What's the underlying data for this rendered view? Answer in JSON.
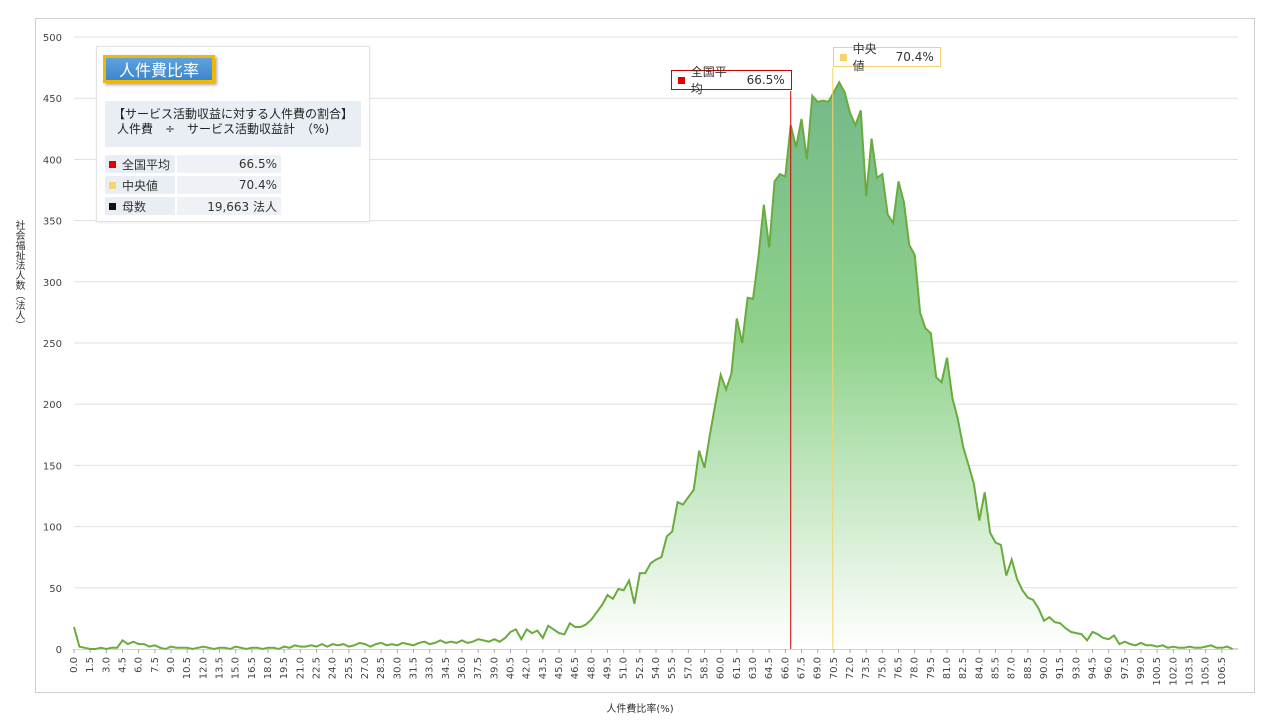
{
  "colors": {
    "line": "#6aab3e",
    "fill_top": "#74b88a",
    "fill_bottom": "#ffffff",
    "mean": "#cc0000",
    "median": "#f5d36b",
    "grid": "#e0e0e0"
  },
  "axis": {
    "ylabel": "社会福祉法人数（法人）",
    "xlabel": "人件費比率(%)"
  },
  "legend": {
    "title": "人件費比率",
    "desc_line1": "【サービス活動収益に対する人件費の割合】",
    "desc_line2": "人件費　÷　サービス活動収益計　（%)",
    "rows": [
      {
        "label": "全国平均",
        "value": "66.5%",
        "color": "#e00000"
      },
      {
        "label": "中央値",
        "value": "70.4%",
        "color": "#f7d56a"
      },
      {
        "label": "母数",
        "value": "19,663  法人",
        "color": "#111111"
      }
    ]
  },
  "markers": {
    "mean": {
      "label": "全国平均",
      "value": "66.5%",
      "x": 66.5
    },
    "median": {
      "label": "中央値",
      "value": "70.4%",
      "x": 70.4
    }
  },
  "chart_data": {
    "type": "area",
    "title": "",
    "xlabel": "人件費比率(%)",
    "ylabel": "社会福祉法人数（法人）",
    "xlim": [
      0,
      108
    ],
    "ylim": [
      0,
      500
    ],
    "yticks": [
      0,
      50,
      100,
      150,
      200,
      250,
      300,
      350,
      400,
      450,
      500
    ],
    "xtick_step": 1.5,
    "grid": true,
    "points": [
      [
        0,
        18
      ],
      [
        0.5,
        2
      ],
      [
        1,
        1
      ],
      [
        1.5,
        0
      ],
      [
        2,
        0
      ],
      [
        2.5,
        1
      ],
      [
        3,
        0
      ],
      [
        3.5,
        1
      ],
      [
        4,
        1
      ],
      [
        4.5,
        7
      ],
      [
        5,
        4
      ],
      [
        5.5,
        6
      ],
      [
        6,
        4
      ],
      [
        6.5,
        4
      ],
      [
        7,
        2
      ],
      [
        7.5,
        3
      ],
      [
        8,
        1
      ],
      [
        8.5,
        0
      ],
      [
        9,
        2
      ],
      [
        9.5,
        1
      ],
      [
        10,
        1
      ],
      [
        10.5,
        1
      ],
      [
        11,
        0
      ],
      [
        11.5,
        1
      ],
      [
        12,
        2
      ],
      [
        12.5,
        1
      ],
      [
        13,
        0
      ],
      [
        13.5,
        1
      ],
      [
        14,
        1
      ],
      [
        14.5,
        0
      ],
      [
        15,
        2
      ],
      [
        15.5,
        1
      ],
      [
        16,
        0
      ],
      [
        16.5,
        1
      ],
      [
        17,
        1
      ],
      [
        17.5,
        0
      ],
      [
        18,
        1
      ],
      [
        18.5,
        1
      ],
      [
        19,
        0
      ],
      [
        19.5,
        2
      ],
      [
        20,
        1
      ],
      [
        20.5,
        3
      ],
      [
        21,
        2
      ],
      [
        21.5,
        2
      ],
      [
        22,
        3
      ],
      [
        22.5,
        2
      ],
      [
        23,
        4
      ],
      [
        23.5,
        2
      ],
      [
        24,
        4
      ],
      [
        24.5,
        3
      ],
      [
        25,
        4
      ],
      [
        25.5,
        2
      ],
      [
        26,
        3
      ],
      [
        26.5,
        5
      ],
      [
        27,
        4
      ],
      [
        27.5,
        2
      ],
      [
        28,
        4
      ],
      [
        28.5,
        5
      ],
      [
        29,
        3
      ],
      [
        29.5,
        4
      ],
      [
        30,
        3
      ],
      [
        30.5,
        5
      ],
      [
        31,
        4
      ],
      [
        31.5,
        3
      ],
      [
        32,
        5
      ],
      [
        32.5,
        6
      ],
      [
        33,
        4
      ],
      [
        33.5,
        5
      ],
      [
        34,
        7
      ],
      [
        34.5,
        5
      ],
      [
        35,
        6
      ],
      [
        35.5,
        5
      ],
      [
        36,
        7
      ],
      [
        36.5,
        5
      ],
      [
        37,
        6
      ],
      [
        37.5,
        8
      ],
      [
        38,
        7
      ],
      [
        38.5,
        6
      ],
      [
        39,
        8
      ],
      [
        39.5,
        6
      ],
      [
        40,
        9
      ],
      [
        40.5,
        14
      ],
      [
        41,
        16
      ],
      [
        41.5,
        8
      ],
      [
        42,
        16
      ],
      [
        42.5,
        13
      ],
      [
        43,
        15
      ],
      [
        43.5,
        9
      ],
      [
        44,
        19
      ],
      [
        44.5,
        16
      ],
      [
        45,
        13
      ],
      [
        45.5,
        12
      ],
      [
        46,
        21
      ],
      [
        46.5,
        18
      ],
      [
        47,
        18
      ],
      [
        47.5,
        20
      ],
      [
        48,
        24
      ],
      [
        48.5,
        30
      ],
      [
        49,
        36
      ],
      [
        49.5,
        44
      ],
      [
        50,
        41
      ],
      [
        50.5,
        49
      ],
      [
        51,
        48
      ],
      [
        51.5,
        56
      ],
      [
        52,
        37
      ],
      [
        52.5,
        62
      ],
      [
        53,
        62
      ],
      [
        53.5,
        70
      ],
      [
        54,
        73
      ],
      [
        54.5,
        75
      ],
      [
        55,
        92
      ],
      [
        55.5,
        96
      ],
      [
        56,
        120
      ],
      [
        56.5,
        118
      ],
      [
        57,
        124
      ],
      [
        57.5,
        130
      ],
      [
        58,
        162
      ],
      [
        58.5,
        148
      ],
      [
        59,
        175
      ],
      [
        59.5,
        200
      ],
      [
        60,
        224
      ],
      [
        60.5,
        212
      ],
      [
        61,
        225
      ],
      [
        61.5,
        270
      ],
      [
        62,
        250
      ],
      [
        62.5,
        287
      ],
      [
        63,
        286
      ],
      [
        63.5,
        320
      ],
      [
        64,
        363
      ],
      [
        64.5,
        328
      ],
      [
        65,
        382
      ],
      [
        65.5,
        388
      ],
      [
        66,
        386
      ],
      [
        66.5,
        428
      ],
      [
        67,
        410
      ],
      [
        67.5,
        433
      ],
      [
        68,
        400
      ],
      [
        68.5,
        452
      ],
      [
        69,
        447
      ],
      [
        69.5,
        448
      ],
      [
        70,
        447
      ],
      [
        70.5,
        455
      ],
      [
        71,
        463
      ],
      [
        71.5,
        455
      ],
      [
        72,
        438
      ],
      [
        72.5,
        428
      ],
      [
        73,
        440
      ],
      [
        73.5,
        370
      ],
      [
        74,
        417
      ],
      [
        74.5,
        385
      ],
      [
        75,
        388
      ],
      [
        75.5,
        355
      ],
      [
        76,
        348
      ],
      [
        76.5,
        382
      ],
      [
        77,
        365
      ],
      [
        77.5,
        330
      ],
      [
        78,
        322
      ],
      [
        78.5,
        275
      ],
      [
        79,
        262
      ],
      [
        79.5,
        258
      ],
      [
        80,
        222
      ],
      [
        80.5,
        218
      ],
      [
        81,
        238
      ],
      [
        81.5,
        205
      ],
      [
        82,
        188
      ],
      [
        82.5,
        165
      ],
      [
        83,
        150
      ],
      [
        83.5,
        135
      ],
      [
        84,
        105
      ],
      [
        84.5,
        128
      ],
      [
        85,
        95
      ],
      [
        85.5,
        87
      ],
      [
        86,
        85
      ],
      [
        86.5,
        60
      ],
      [
        87,
        73
      ],
      [
        87.5,
        57
      ],
      [
        88,
        48
      ],
      [
        88.5,
        42
      ],
      [
        89,
        40
      ],
      [
        89.5,
        33
      ],
      [
        90,
        23
      ],
      [
        90.5,
        26
      ],
      [
        91,
        22
      ],
      [
        91.5,
        21
      ],
      [
        92,
        17
      ],
      [
        92.5,
        14
      ],
      [
        93,
        13
      ],
      [
        93.5,
        12
      ],
      [
        94,
        7
      ],
      [
        94.5,
        14
      ],
      [
        95,
        12
      ],
      [
        95.5,
        9
      ],
      [
        96,
        8
      ],
      [
        96.5,
        11
      ],
      [
        97,
        4
      ],
      [
        97.5,
        6
      ],
      [
        98,
        4
      ],
      [
        98.5,
        3
      ],
      [
        99,
        5
      ],
      [
        99.5,
        3
      ],
      [
        100,
        3
      ],
      [
        100.5,
        2
      ],
      [
        101,
        3
      ],
      [
        101.5,
        1
      ],
      [
        102,
        2
      ],
      [
        102.5,
        1
      ],
      [
        103,
        1
      ],
      [
        103.5,
        2
      ],
      [
        104,
        1
      ],
      [
        104.5,
        1
      ],
      [
        105,
        2
      ],
      [
        105.5,
        3
      ],
      [
        106,
        1
      ],
      [
        106.5,
        1
      ],
      [
        107,
        2
      ],
      [
        107.5,
        0
      ]
    ]
  }
}
